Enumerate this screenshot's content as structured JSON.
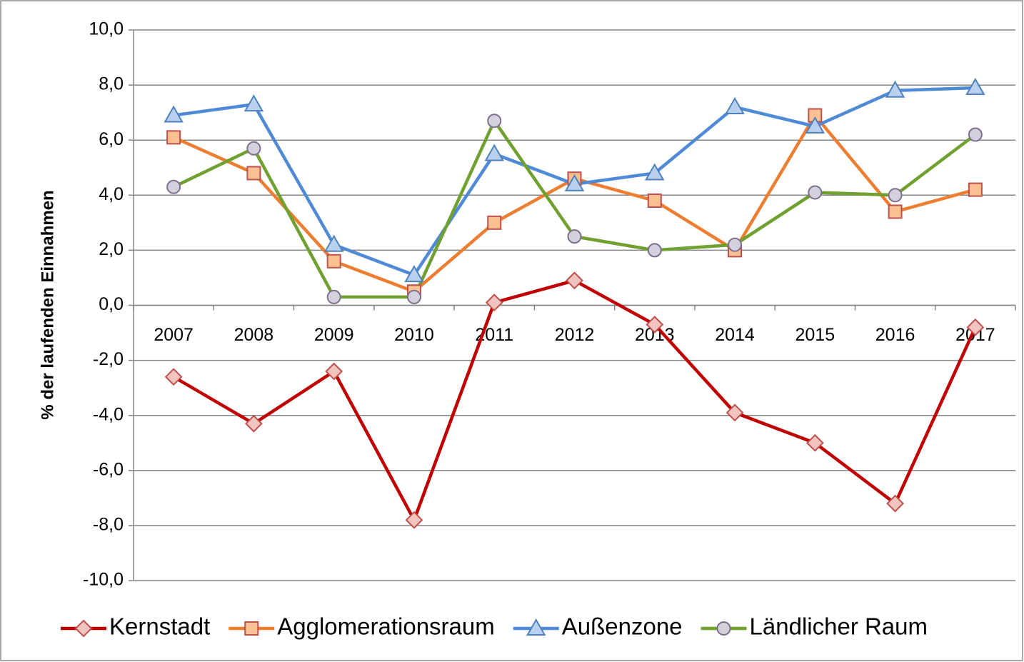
{
  "chart_data": {
    "type": "line",
    "y_label": "% der laufenden Einnahmen",
    "categories": [
      "2007",
      "2008",
      "2009",
      "2010",
      "2011",
      "2012",
      "2013",
      "2014",
      "2015",
      "2016",
      "2017"
    ],
    "series": [
      {
        "name": "Kernstadt",
        "color": "#c00000",
        "marker": "diamond",
        "marker_fill": "#f2c4c0",
        "marker_stroke": "#c0504d",
        "values": [
          -2.6,
          -4.3,
          -2.4,
          -7.8,
          0.1,
          0.9,
          -0.7,
          -3.9,
          -5.0,
          -7.2,
          -0.8
        ]
      },
      {
        "name": "Agglomerationsraum",
        "color": "#ed7d31",
        "marker": "square",
        "marker_fill": "#fac090",
        "marker_stroke": "#c0504d",
        "values": [
          6.1,
          4.8,
          1.6,
          0.5,
          3.0,
          4.6,
          3.8,
          2.0,
          6.9,
          3.4,
          4.2
        ]
      },
      {
        "name": "Außenzone",
        "color": "#4f8ad6",
        "marker": "triangle",
        "marker_fill": "#b9d0ee",
        "marker_stroke": "#4f81bd",
        "values": [
          6.9,
          7.3,
          2.2,
          1.1,
          5.5,
          4.4,
          4.8,
          7.2,
          6.5,
          7.8,
          7.9
        ]
      },
      {
        "name": "Ländlicher Raum",
        "color": "#70a030",
        "marker": "circle",
        "marker_fill": "#d4d0dc",
        "marker_stroke": "#7f6f8f",
        "values": [
          4.3,
          5.7,
          0.3,
          0.3,
          6.7,
          2.5,
          2.0,
          2.2,
          4.1,
          4.0,
          6.2
        ]
      }
    ],
    "ylim": [
      -10,
      10
    ],
    "yticks": [
      {
        "value": -10,
        "label": "-10,0"
      },
      {
        "value": -8,
        "label": "-8,0"
      },
      {
        "value": -6,
        "label": "-6,0"
      },
      {
        "value": -4,
        "label": "-4,0"
      },
      {
        "value": -2,
        "label": "-2,0"
      },
      {
        "value": 0,
        "label": "0,0"
      },
      {
        "value": 2,
        "label": "2,0"
      },
      {
        "value": 4,
        "label": "4,0"
      },
      {
        "value": 6,
        "label": "6,0"
      },
      {
        "value": 8,
        "label": "8,0"
      },
      {
        "value": 10,
        "label": "10,0"
      }
    ],
    "grid": true,
    "legend": "bottom"
  }
}
